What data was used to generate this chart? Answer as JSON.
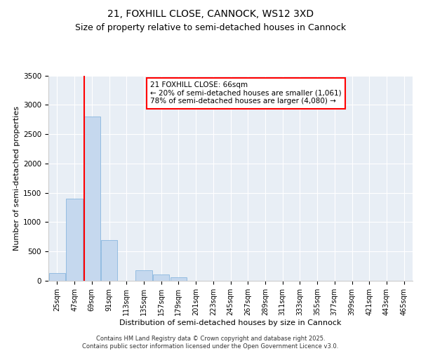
{
  "title_line1": "21, FOXHILL CLOSE, CANNOCK, WS12 3XD",
  "title_line2": "Size of property relative to semi-detached houses in Cannock",
  "xlabel": "Distribution of semi-detached houses by size in Cannock",
  "ylabel": "Number of semi-detached properties",
  "categories": [
    "25sqm",
    "47sqm",
    "69sqm",
    "91sqm",
    "113sqm",
    "135sqm",
    "157sqm",
    "179sqm",
    "201sqm",
    "223sqm",
    "245sqm",
    "267sqm",
    "289sqm",
    "311sqm",
    "333sqm",
    "355sqm",
    "377sqm",
    "399sqm",
    "421sqm",
    "443sqm",
    "465sqm"
  ],
  "values": [
    130,
    1400,
    2800,
    700,
    0,
    175,
    110,
    60,
    0,
    0,
    0,
    0,
    0,
    0,
    0,
    0,
    0,
    0,
    0,
    0,
    0
  ],
  "bar_color": "#c5d8ee",
  "bar_edge_color": "#7aaedb",
  "vline_x": 2.0,
  "vline_color": "red",
  "annotation_text": "21 FOXHILL CLOSE: 66sqm\n← 20% of semi-detached houses are smaller (1,061)\n78% of semi-detached houses are larger (4,080) →",
  "annotation_box_color": "white",
  "annotation_box_edge": "red",
  "ylim": [
    0,
    3500
  ],
  "yticks": [
    0,
    500,
    1000,
    1500,
    2000,
    2500,
    3000,
    3500
  ],
  "background_color": "#e8eef5",
  "grid_color": "#ffffff",
  "footer_text": "Contains HM Land Registry data © Crown copyright and database right 2025.\nContains public sector information licensed under the Open Government Licence v3.0.",
  "title_fontsize": 10,
  "subtitle_fontsize": 9,
  "axis_label_fontsize": 8,
  "tick_fontsize": 7,
  "annotation_fontsize": 7.5,
  "footer_fontsize": 6
}
